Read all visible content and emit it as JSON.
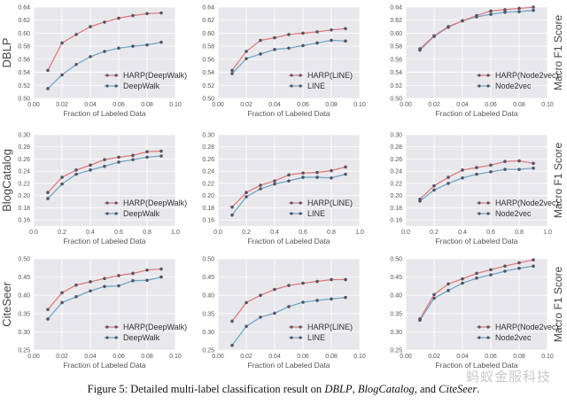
{
  "caption": {
    "prefix": "Figure 5: Detailed multi-label classification result on ",
    "d1": "DBLP",
    "sep1": ", ",
    "d2": "BlogCatalog",
    "sep2": ", and ",
    "d3": "CiteSeer",
    "suffix": "."
  },
  "watermark": "蚂蚁金服科技",
  "colors": {
    "harp": "#e07b7b",
    "baseline": "#6fa8c8",
    "marker": "#555566",
    "panel_bg": "#e8e8ec",
    "grid": "#ffffff"
  },
  "row_labels": [
    "DBLP",
    "BlogCatalog",
    "CiteSeer"
  ],
  "side_label": "Macro F1 Score",
  "chart_data": [
    {
      "type": "line",
      "row": 0,
      "col": 0,
      "row_label": "DBLP",
      "xlabel": "Fraction of Labeled Data",
      "ylabel": "DBLP",
      "xlim": [
        0.0,
        0.1
      ],
      "ylim": [
        0.5,
        0.64
      ],
      "xticks": [
        "0.00",
        "0.02",
        "0.04",
        "0.06",
        "0.08",
        "0.10"
      ],
      "yticks": [
        "0.50",
        "0.52",
        "0.54",
        "0.56",
        "0.58",
        "0.60",
        "0.62",
        "0.64"
      ],
      "x": [
        0.01,
        0.02,
        0.03,
        0.04,
        0.05,
        0.06,
        0.07,
        0.08,
        0.09
      ],
      "legend": "bottom-right",
      "grid": true,
      "series": [
        {
          "name": "HARP(DeepWalk)",
          "values": [
            0.543,
            0.585,
            0.598,
            0.61,
            0.617,
            0.623,
            0.627,
            0.63,
            0.631
          ]
        },
        {
          "name": "DeepWalk",
          "values": [
            0.515,
            0.536,
            0.552,
            0.564,
            0.572,
            0.577,
            0.58,
            0.582,
            0.586
          ]
        }
      ]
    },
    {
      "type": "line",
      "row": 0,
      "col": 1,
      "xlabel": "Fraction of Labeled Data",
      "ylabel": "",
      "xlim": [
        0.0,
        0.1
      ],
      "ylim": [
        0.5,
        0.64
      ],
      "xticks": [
        "0.00",
        "0.02",
        "0.04",
        "0.06",
        "0.08",
        "0.10"
      ],
      "yticks": [
        "0.50",
        "0.52",
        "0.54",
        "0.56",
        "0.58",
        "0.60",
        "0.62",
        "0.64"
      ],
      "x": [
        0.01,
        0.02,
        0.03,
        0.04,
        0.05,
        0.06,
        0.07,
        0.08,
        0.09
      ],
      "legend": "bottom-right",
      "grid": true,
      "series": [
        {
          "name": "HARP(LINE)",
          "values": [
            0.543,
            0.572,
            0.589,
            0.593,
            0.598,
            0.6,
            0.602,
            0.605,
            0.607
          ]
        },
        {
          "name": "LINE",
          "values": [
            0.538,
            0.561,
            0.568,
            0.575,
            0.577,
            0.581,
            0.585,
            0.589,
            0.588
          ]
        }
      ]
    },
    {
      "type": "line",
      "row": 0,
      "col": 2,
      "xlabel": "Fraction of Labeled Data",
      "ylabel": "Macro F1 Score",
      "xlim": [
        0.0,
        0.1
      ],
      "ylim": [
        0.5,
        0.64
      ],
      "xticks": [
        "0.00",
        "0.02",
        "0.04",
        "0.06",
        "0.08",
        "0.10"
      ],
      "yticks": [
        "0.50",
        "0.52",
        "0.54",
        "0.56",
        "0.58",
        "0.60",
        "0.62",
        "0.64"
      ],
      "x": [
        0.01,
        0.02,
        0.03,
        0.04,
        0.05,
        0.06,
        0.07,
        0.08,
        0.09
      ],
      "legend": "bottom-right",
      "grid": true,
      "series": [
        {
          "name": "HARP(Node2vec)",
          "values": [
            0.576,
            0.596,
            0.61,
            0.619,
            0.627,
            0.634,
            0.636,
            0.638,
            0.64
          ]
        },
        {
          "name": "Node2vec",
          "values": [
            0.574,
            0.595,
            0.609,
            0.619,
            0.625,
            0.629,
            0.632,
            0.633,
            0.635
          ]
        }
      ]
    },
    {
      "type": "line",
      "row": 1,
      "col": 0,
      "xlabel": "Fraction of Labeled Data",
      "ylabel": "BlogCatalog",
      "xlim": [
        0.0,
        1.0
      ],
      "ylim": [
        0.15,
        0.3
      ],
      "xticks": [
        "0.0",
        "0.2",
        "0.4",
        "0.6",
        "0.8",
        "1.0"
      ],
      "yticks": [
        "0.16",
        "0.18",
        "0.20",
        "0.22",
        "0.24",
        "0.26",
        "0.28",
        "0.30"
      ],
      "x": [
        0.1,
        0.2,
        0.3,
        0.4,
        0.5,
        0.6,
        0.7,
        0.8,
        0.9
      ],
      "legend": "bottom-right",
      "grid": true,
      "series": [
        {
          "name": "HARP(DeepWalk)",
          "values": [
            0.205,
            0.23,
            0.242,
            0.25,
            0.259,
            0.263,
            0.266,
            0.272,
            0.273
          ]
        },
        {
          "name": "DeepWalk",
          "values": [
            0.195,
            0.219,
            0.235,
            0.242,
            0.248,
            0.255,
            0.259,
            0.263,
            0.265
          ]
        }
      ]
    },
    {
      "type": "line",
      "row": 1,
      "col": 1,
      "xlabel": "Fraction of Labeled Data",
      "ylabel": "",
      "xlim": [
        0.0,
        1.0
      ],
      "ylim": [
        0.15,
        0.3
      ],
      "xticks": [
        "0.0",
        "0.2",
        "0.4",
        "0.6",
        "0.8",
        "1.0"
      ],
      "yticks": [
        "0.16",
        "0.18",
        "0.20",
        "0.22",
        "0.24",
        "0.26",
        "0.28",
        "0.30"
      ],
      "x": [
        0.1,
        0.2,
        0.3,
        0.4,
        0.5,
        0.6,
        0.7,
        0.8,
        0.9
      ],
      "legend": "bottom-right",
      "grid": true,
      "series": [
        {
          "name": "HARP(LINE)",
          "values": [
            0.181,
            0.205,
            0.217,
            0.224,
            0.234,
            0.237,
            0.238,
            0.241,
            0.247
          ]
        },
        {
          "name": "LINE",
          "values": [
            0.168,
            0.198,
            0.211,
            0.219,
            0.224,
            0.23,
            0.23,
            0.229,
            0.235
          ]
        }
      ]
    },
    {
      "type": "line",
      "row": 1,
      "col": 2,
      "xlabel": "Fraction of Labeled Data",
      "ylabel": "Macro F1 Score",
      "xlim": [
        0.0,
        1.0
      ],
      "ylim": [
        0.15,
        0.3
      ],
      "xticks": [
        "0.0",
        "0.2",
        "0.4",
        "0.6",
        "0.8",
        "1.0"
      ],
      "yticks": [
        "0.16",
        "0.18",
        "0.20",
        "0.22",
        "0.24",
        "0.26",
        "0.28",
        "0.30"
      ],
      "x": [
        0.1,
        0.2,
        0.3,
        0.4,
        0.5,
        0.6,
        0.7,
        0.8,
        0.9
      ],
      "legend": "bottom-right",
      "grid": true,
      "series": [
        {
          "name": "HARP(Node2vec)",
          "values": [
            0.194,
            0.216,
            0.23,
            0.242,
            0.246,
            0.25,
            0.256,
            0.257,
            0.253
          ]
        },
        {
          "name": "Node2vec",
          "values": [
            0.191,
            0.209,
            0.22,
            0.229,
            0.235,
            0.239,
            0.243,
            0.243,
            0.245
          ]
        }
      ]
    },
    {
      "type": "line",
      "row": 2,
      "col": 0,
      "xlabel": "Fraction of Labeled Data",
      "ylabel": "CiteSeer",
      "xlim": [
        0.0,
        0.1
      ],
      "ylim": [
        0.25,
        0.5
      ],
      "xticks": [
        "0.00",
        "0.02",
        "0.04",
        "0.06",
        "0.08",
        "0.10"
      ],
      "yticks": [
        "0.25",
        "0.30",
        "0.35",
        "0.40",
        "0.45",
        "0.50"
      ],
      "x": [
        0.01,
        0.02,
        0.03,
        0.04,
        0.05,
        0.06,
        0.07,
        0.08,
        0.09
      ],
      "legend": "bottom-right",
      "grid": true,
      "series": [
        {
          "name": "HARP(DeepWalk)",
          "values": [
            0.361,
            0.407,
            0.428,
            0.437,
            0.446,
            0.454,
            0.46,
            0.469,
            0.472
          ]
        },
        {
          "name": "DeepWalk",
          "values": [
            0.335,
            0.38,
            0.396,
            0.412,
            0.424,
            0.426,
            0.44,
            0.441,
            0.45
          ]
        }
      ]
    },
    {
      "type": "line",
      "row": 2,
      "col": 1,
      "xlabel": "Fraction of Labeled Data",
      "ylabel": "",
      "xlim": [
        0.0,
        0.1
      ],
      "ylim": [
        0.25,
        0.5
      ],
      "xticks": [
        "0.00",
        "0.02",
        "0.04",
        "0.06",
        "0.08",
        "0.10"
      ],
      "yticks": [
        "0.25",
        "0.30",
        "0.35",
        "0.40",
        "0.45",
        "0.50"
      ],
      "x": [
        0.01,
        0.02,
        0.03,
        0.04,
        0.05,
        0.06,
        0.07,
        0.08,
        0.09
      ],
      "legend": "bottom-right",
      "grid": true,
      "series": [
        {
          "name": "HARP(LINE)",
          "values": [
            0.329,
            0.38,
            0.4,
            0.416,
            0.427,
            0.433,
            0.438,
            0.443,
            0.443
          ]
        },
        {
          "name": "LINE",
          "values": [
            0.263,
            0.315,
            0.34,
            0.351,
            0.369,
            0.381,
            0.386,
            0.39,
            0.394
          ]
        }
      ]
    },
    {
      "type": "line",
      "row": 2,
      "col": 2,
      "xlabel": "Fraction of Labeled Data",
      "ylabel": "Macro F1 Score",
      "xlim": [
        0.0,
        0.1
      ],
      "ylim": [
        0.25,
        0.5
      ],
      "xticks": [
        "0.00",
        "0.02",
        "0.04",
        "0.06",
        "0.08",
        "0.10"
      ],
      "yticks": [
        "0.25",
        "0.30",
        "0.35",
        "0.40",
        "0.45",
        "0.50"
      ],
      "x": [
        0.01,
        0.02,
        0.03,
        0.04,
        0.05,
        0.06,
        0.07,
        0.08,
        0.09
      ],
      "legend": "bottom-right",
      "grid": true,
      "series": [
        {
          "name": "HARP(Node2vec)",
          "values": [
            0.335,
            0.402,
            0.431,
            0.445,
            0.46,
            0.47,
            0.48,
            0.489,
            0.497
          ]
        },
        {
          "name": "Node2vec",
          "values": [
            0.332,
            0.392,
            0.413,
            0.433,
            0.447,
            0.456,
            0.466,
            0.474,
            0.48
          ]
        }
      ]
    }
  ]
}
